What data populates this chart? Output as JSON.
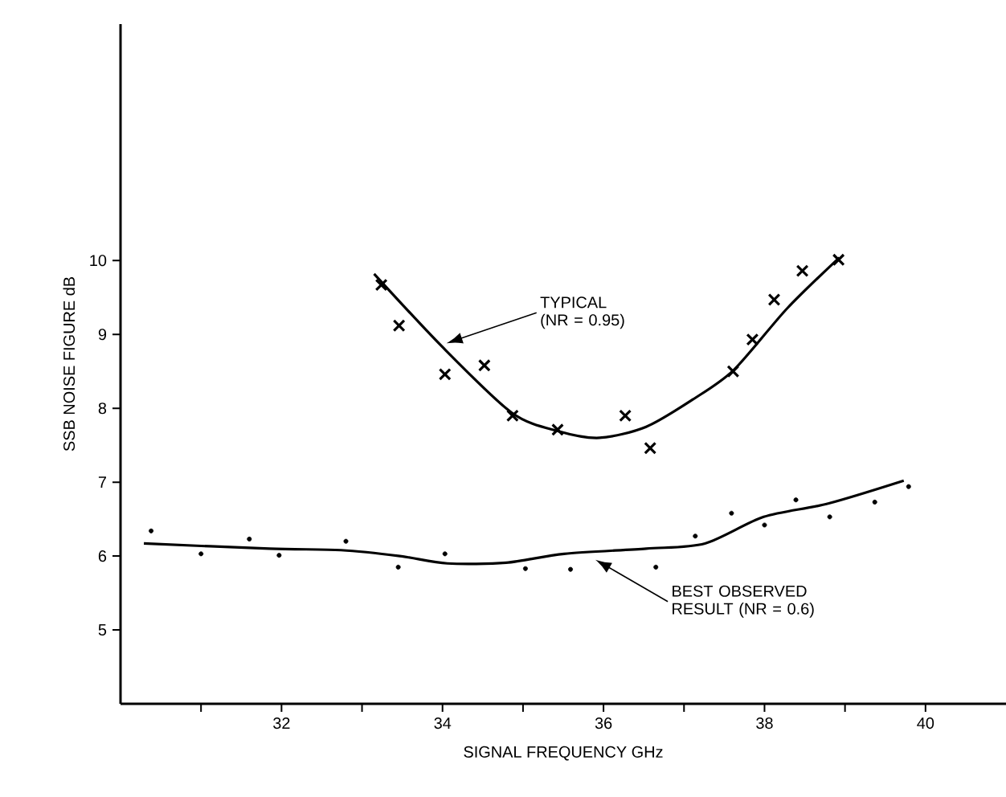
{
  "chart_data": {
    "type": "scatter",
    "xlabel": "SIGNAL FREQUENCY GHz",
    "ylabel": "SSB NOISE FIGURE dB",
    "xlim": [
      30,
      41
    ],
    "ylim": [
      4,
      13.2
    ],
    "xticks": [
      {
        "value": 31,
        "label": null
      },
      32,
      {
        "value": 33,
        "label": null
      },
      34,
      {
        "value": 35,
        "label": null
      },
      36,
      {
        "value": 37,
        "label": null
      },
      38,
      {
        "value": 39,
        "label": null
      },
      40
    ],
    "yticks": [
      5,
      6,
      7,
      8,
      9,
      10
    ],
    "series": [
      {
        "marker": "cross",
        "color": "#000000",
        "x": [
          33.24,
          33.46,
          34.03,
          34.52,
          34.87,
          35.43,
          36.27,
          36.58,
          37.61,
          37.85,
          38.12,
          38.47,
          38.92
        ],
        "values": [
          9.67,
          9.12,
          8.46,
          8.58,
          7.9,
          7.71,
          7.9,
          7.46,
          8.5,
          8.93,
          9.47,
          9.86,
          10.01
        ]
      },
      {
        "marker": "circle",
        "color": "#000000",
        "x": [
          30.38,
          31.0,
          31.6,
          31.97,
          32.8,
          33.45,
          34.03,
          35.03,
          35.59,
          36.65,
          37.14,
          37.59,
          38.0,
          38.39,
          38.81,
          39.37,
          39.79
        ],
        "values": [
          6.34,
          6.03,
          6.23,
          6.01,
          6.2,
          5.85,
          6.03,
          5.83,
          5.82,
          5.85,
          6.27,
          6.58,
          6.42,
          6.76,
          6.53,
          6.73,
          6.94
        ]
      },
      {
        "type": "line",
        "marker": "none",
        "line_style": "solid",
        "color": "#000000",
        "x": [
          33.15,
          33.99,
          34.86,
          35.44,
          35.95,
          36.53,
          37.11,
          37.62,
          38.28,
          38.93
        ],
        "values": [
          9.82,
          8.84,
          7.94,
          7.69,
          7.6,
          7.75,
          8.12,
          8.52,
          9.35,
          10.04
        ]
      },
      {
        "type": "line",
        "marker": "none",
        "line_style": "solid",
        "color": "#000000",
        "x": [
          30.29,
          31.85,
          32.74,
          33.47,
          34.06,
          34.79,
          35.51,
          36.53,
          37.26,
          37.99,
          38.79,
          39.73
        ],
        "values": [
          6.17,
          6.1,
          6.08,
          6.0,
          5.9,
          5.91,
          6.03,
          6.1,
          6.17,
          6.53,
          6.71,
          7.02
        ]
      }
    ],
    "annotations": [
      "TYPICAL (NR = 0.95)",
      "BEST OBSERVED RESULT (NR = 0.6)"
    ]
  }
}
